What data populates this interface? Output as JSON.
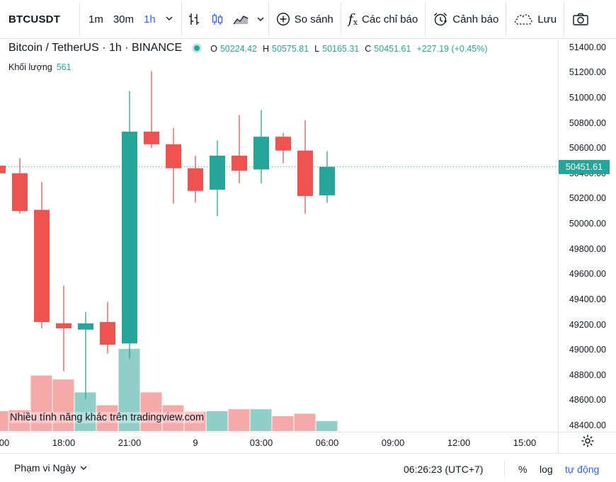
{
  "toolbar": {
    "symbol": "BTCUSDT",
    "intervals": [
      "1m",
      "30m",
      "1h"
    ],
    "active_interval": "1h",
    "compare_label": "So sánh",
    "indicators_label": "Các chỉ báo",
    "alert_label": "Cảnh báo",
    "save_label": "Lưu",
    "icons": [
      "chevron-down-icon",
      "bar-style-icon",
      "candles-icon",
      "area-icon",
      "plus-circle-icon",
      "fx-icon",
      "alarm-icon",
      "cloud-icon",
      "camera-icon"
    ]
  },
  "legend": {
    "title": "Bitcoin / TetherUS · 1h · BINANCE",
    "open_key": "O",
    "open": "50224.42",
    "high_key": "H",
    "high": "50575.81",
    "low_key": "L",
    "low": "50165.31",
    "close_key": "C",
    "close": "50451.61",
    "change": "+227.19 (+0.45%)"
  },
  "volume": {
    "label": "Khối lượng",
    "value": "561"
  },
  "watermark": "Nhiều tính năng khác trên tradingview.com",
  "price_axis": {
    "labels": [
      "51400.00",
      "51200.00",
      "51000.00",
      "50800.00",
      "50600.00",
      "50400.00",
      "50200.00",
      "50000.00",
      "49800.00",
      "49600.00",
      "49400.00",
      "49200.00",
      "49000.00",
      "48800.00",
      "48600.00",
      "48400.00"
    ],
    "last_price": "50451.61"
  },
  "time_axis": {
    "labels": [
      "00",
      "18:00",
      "21:00",
      "9",
      "03:00",
      "06:00",
      "09:00",
      "12:00",
      "15:00"
    ]
  },
  "bottom": {
    "range_label": "Phạm vi Ngày",
    "clock": "06:26:23 (UTC+7)",
    "percent": "%",
    "log": "log",
    "auto": "tự động"
  },
  "colors": {
    "up": "#26a69a",
    "down": "#ef5350",
    "accent": "#2962ff",
    "vol_up": "#8fcfc8",
    "vol_down": "#f5a9a8"
  },
  "chart_data": {
    "type": "candlestick",
    "price_range": [
      48350,
      51460
    ],
    "candles": [
      {
        "o": 50460,
        "h": 50470,
        "c": 50400,
        "l": 50390
      },
      {
        "o": 50400,
        "h": 50520,
        "c": 50100,
        "l": 50080
      },
      {
        "o": 50110,
        "h": 50330,
        "c": 49220,
        "l": 49170
      },
      {
        "o": 49210,
        "h": 49510,
        "c": 49170,
        "l": 48830
      },
      {
        "o": 49160,
        "h": 49300,
        "c": 49210,
        "l": 48610
      },
      {
        "o": 49220,
        "h": 49380,
        "c": 49040,
        "l": 48970
      },
      {
        "o": 49050,
        "h": 51050,
        "c": 50730,
        "l": 48930
      },
      {
        "o": 50730,
        "h": 51210,
        "c": 50630,
        "l": 50600
      },
      {
        "o": 50630,
        "h": 50760,
        "c": 50440,
        "l": 50160
      },
      {
        "o": 50440,
        "h": 50540,
        "c": 50260,
        "l": 50170
      },
      {
        "o": 50270,
        "h": 50660,
        "c": 50540,
        "l": 50060
      },
      {
        "o": 50540,
        "h": 50860,
        "c": 50420,
        "l": 50320
      },
      {
        "o": 50430,
        "h": 50900,
        "c": 50690,
        "l": 50320
      },
      {
        "o": 50690,
        "h": 50720,
        "c": 50580,
        "l": 50480
      },
      {
        "o": 50580,
        "h": 50820,
        "c": 50220,
        "l": 50080
      },
      {
        "o": 50224.42,
        "h": 50575.81,
        "c": 50451.61,
        "l": 50165.31
      }
    ],
    "volumes": [
      40,
      42,
      112,
      104,
      78,
      52,
      166,
      78,
      52,
      39,
      40,
      44,
      44,
      30,
      35,
      20
    ]
  }
}
